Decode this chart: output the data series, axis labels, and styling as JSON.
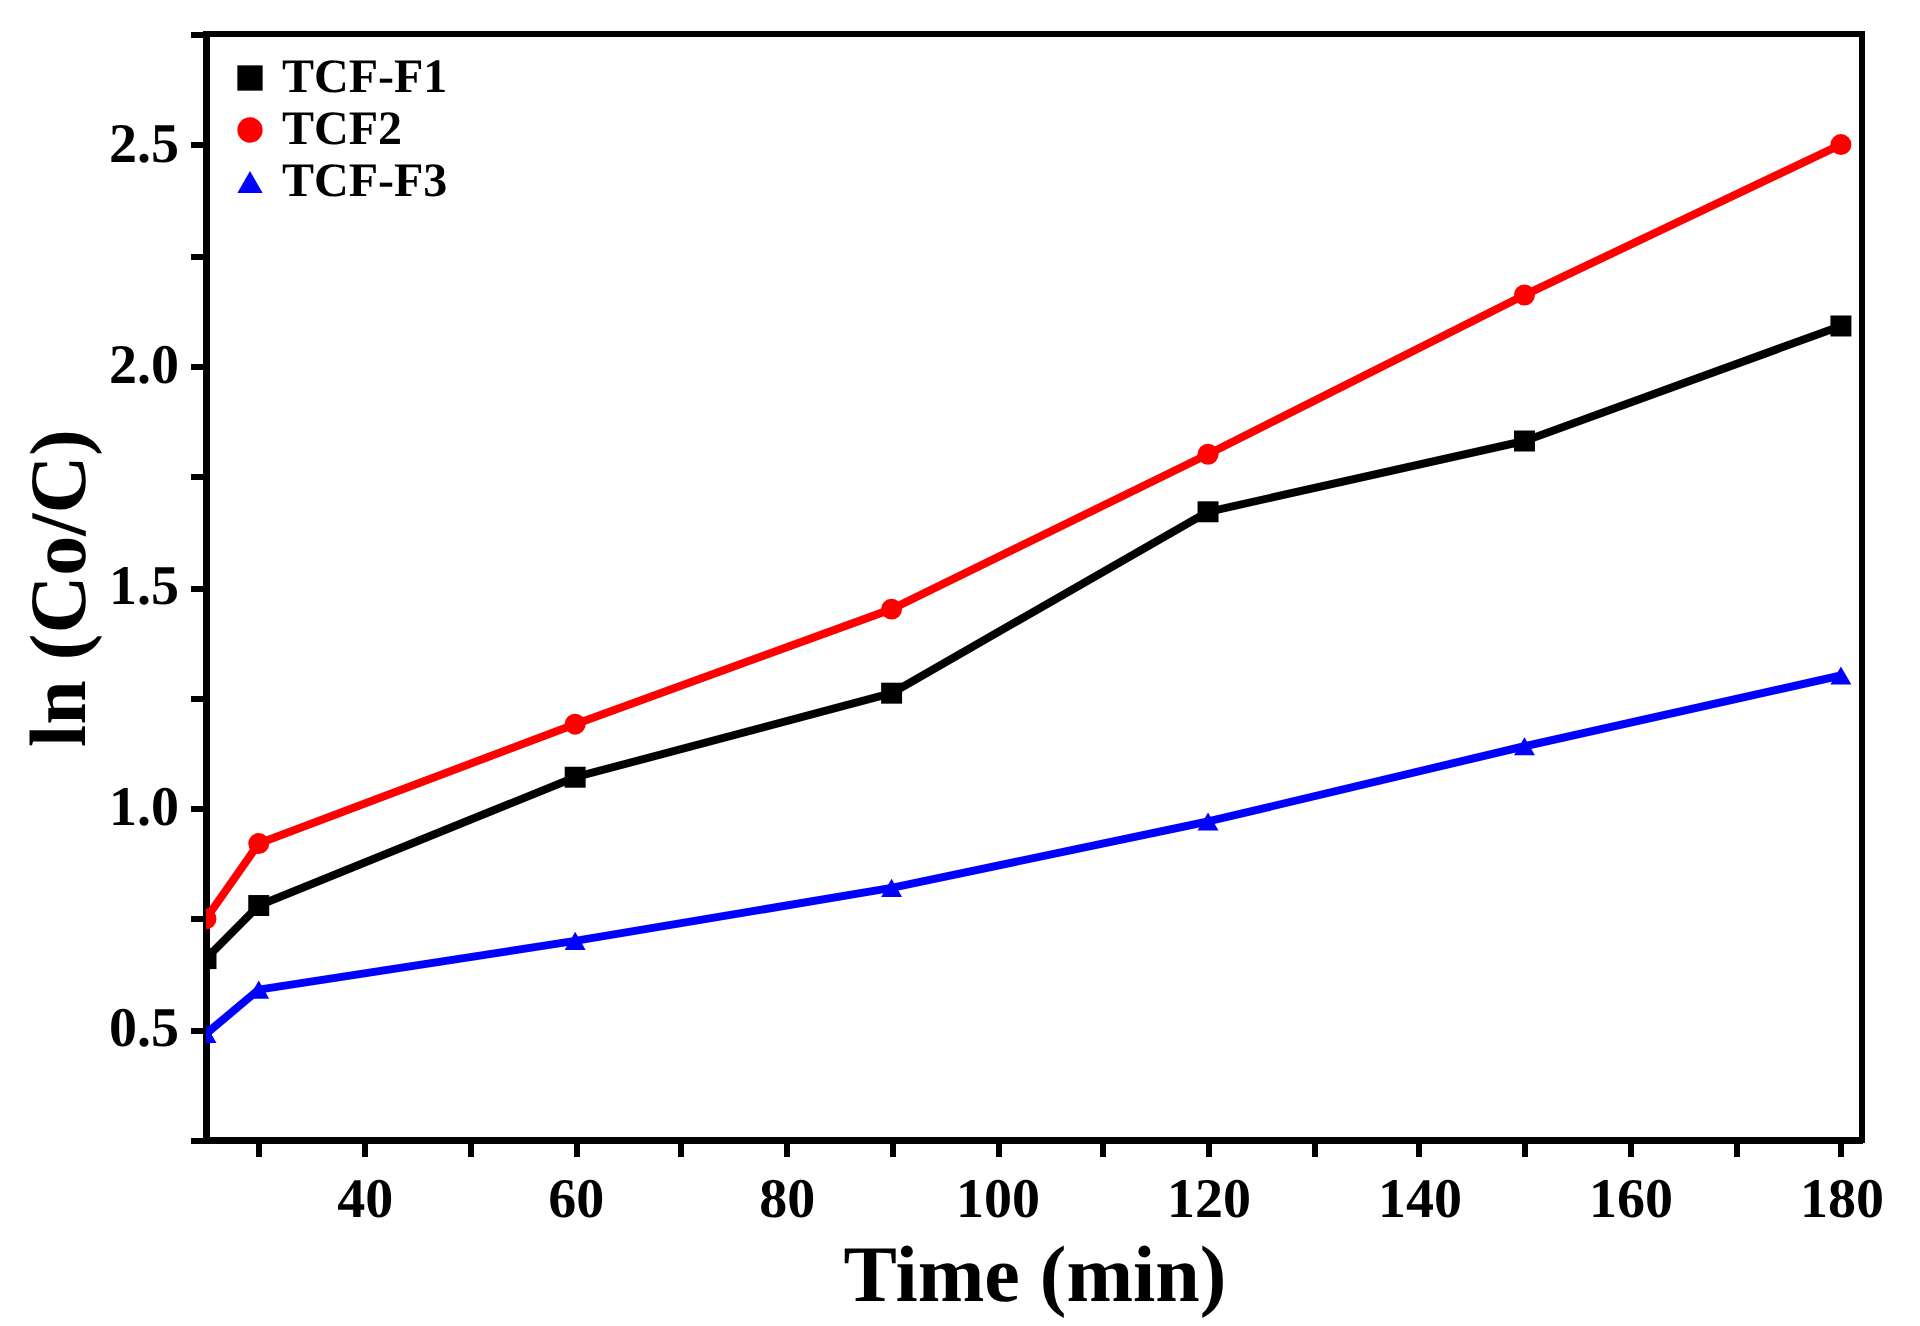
{
  "chart_data": {
    "type": "line",
    "xlabel": "Time (min)",
    "ylabel": "ln (Co/C)",
    "x": [
      25,
      30,
      60,
      90,
      120,
      150,
      180
    ],
    "series": [
      {
        "name": "TCF-F1",
        "color": "#000000",
        "marker": "square",
        "values": [
          0.66,
          0.78,
          1.07,
          1.26,
          1.67,
          1.83,
          2.09
        ]
      },
      {
        "name": "TCF2",
        "color": "#ff0000",
        "marker": "circle",
        "values": [
          0.75,
          0.92,
          1.19,
          1.45,
          1.8,
          2.16,
          2.5
        ]
      },
      {
        "name": "TCF-F3",
        "color": "#0000ff",
        "marker": "triangle",
        "values": [
          0.49,
          0.59,
          0.7,
          0.82,
          0.97,
          1.14,
          1.3
        ]
      }
    ],
    "xlim": [
      25,
      182
    ],
    "ylim": [
      0.25,
      2.75
    ],
    "xticks": [
      {
        "value": 30,
        "label": null
      },
      40,
      {
        "value": 50,
        "label": null
      },
      60,
      {
        "value": 70,
        "label": null
      },
      80,
      {
        "value": 90,
        "label": null
      },
      100,
      {
        "value": 110,
        "label": null
      },
      120,
      {
        "value": 130,
        "label": null
      },
      140,
      {
        "value": 150,
        "label": null
      },
      160,
      {
        "value": 170,
        "label": null
      },
      180
    ],
    "yticks": [
      {
        "value": 0.25,
        "label": null
      },
      0.5,
      {
        "value": 0.75,
        "label": null
      },
      {
        "value": 1,
        "label": "1.0"
      },
      {
        "value": 1.25,
        "label": null
      },
      1.5,
      {
        "value": 1.75,
        "label": null
      },
      {
        "value": 2,
        "label": "2.0"
      },
      {
        "value": 2.25,
        "label": null
      },
      2.5,
      {
        "value": 2.75,
        "label": null
      }
    ],
    "legend": "top left",
    "grid": false,
    "line_style": "solid"
  }
}
